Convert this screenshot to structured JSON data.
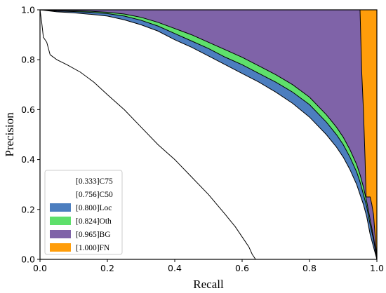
{
  "chart_data": {
    "type": "area",
    "title": "",
    "xlabel": "Recall",
    "ylabel": "Precision",
    "xlim": [
      0.0,
      1.0
    ],
    "ylim": [
      0.0,
      1.0
    ],
    "xticks": [
      "0.0",
      "0.2",
      "0.4",
      "0.6",
      "0.8",
      "1.0"
    ],
    "yticks": [
      "0.0",
      "0.2",
      "0.4",
      "0.6",
      "0.8",
      "1.0"
    ],
    "grid": false,
    "legend_position": "lower-left",
    "legend": [
      {
        "label": "[0.333]C75",
        "color": "#ffffff"
      },
      {
        "label": "[0.756]C50",
        "color": "#ffffff"
      },
      {
        "label": "[0.800]Loc",
        "color": "#4c7ebf"
      },
      {
        "label": "[0.824]Oth",
        "color": "#5ee06b"
      },
      {
        "label": "[0.965]BG",
        "color": "#7f63a8"
      },
      {
        "label": "[1.000]FN",
        "color": "#ff9d0a"
      }
    ],
    "series": [
      {
        "name": "[0.333]C75",
        "color": "#ffffff",
        "x": [
          0.0,
          0.005,
          0.01,
          0.02,
          0.03,
          0.05,
          0.08,
          0.12,
          0.16,
          0.2,
          0.25,
          0.3,
          0.35,
          0.4,
          0.45,
          0.5,
          0.55,
          0.58,
          0.6,
          0.62,
          0.63,
          0.64
        ],
        "y": [
          1.0,
          0.95,
          0.89,
          0.87,
          0.82,
          0.8,
          0.78,
          0.75,
          0.71,
          0.66,
          0.6,
          0.53,
          0.46,
          0.4,
          0.33,
          0.26,
          0.18,
          0.13,
          0.09,
          0.05,
          0.02,
          0.0
        ]
      },
      {
        "name": "[0.756]C50",
        "color": "#ffffff",
        "x": [
          0.0,
          0.05,
          0.1,
          0.15,
          0.2,
          0.25,
          0.3,
          0.35,
          0.4,
          0.45,
          0.5,
          0.55,
          0.6,
          0.65,
          0.7,
          0.75,
          0.8,
          0.85,
          0.88,
          0.9,
          0.92,
          0.94,
          0.95,
          0.96,
          0.97,
          0.98,
          0.99,
          1.0
        ],
        "y": [
          1.0,
          0.992,
          0.988,
          0.982,
          0.975,
          0.96,
          0.94,
          0.915,
          0.88,
          0.85,
          0.815,
          0.78,
          0.745,
          0.71,
          0.67,
          0.625,
          0.57,
          0.5,
          0.45,
          0.41,
          0.36,
          0.3,
          0.26,
          0.22,
          0.17,
          0.1,
          0.05,
          0.0
        ]
      },
      {
        "name": "[0.800]Loc",
        "color": "#4c7ebf",
        "x": [
          0.0,
          0.05,
          0.1,
          0.15,
          0.2,
          0.25,
          0.3,
          0.35,
          0.4,
          0.45,
          0.5,
          0.55,
          0.6,
          0.65,
          0.7,
          0.75,
          0.8,
          0.85,
          0.88,
          0.9,
          0.92,
          0.94,
          0.95,
          0.96,
          0.97,
          0.98,
          0.99,
          1.0
        ],
        "y": [
          1.0,
          0.995,
          0.993,
          0.99,
          0.985,
          0.975,
          0.958,
          0.935,
          0.905,
          0.875,
          0.845,
          0.81,
          0.78,
          0.745,
          0.71,
          0.67,
          0.62,
          0.55,
          0.5,
          0.46,
          0.41,
          0.35,
          0.31,
          0.26,
          0.21,
          0.14,
          0.08,
          0.0
        ]
      },
      {
        "name": "[0.824]Oth",
        "color": "#5ee06b",
        "x": [
          0.0,
          0.05,
          0.1,
          0.15,
          0.2,
          0.25,
          0.3,
          0.35,
          0.4,
          0.45,
          0.5,
          0.55,
          0.6,
          0.65,
          0.7,
          0.75,
          0.8,
          0.85,
          0.88,
          0.9,
          0.92,
          0.94,
          0.95,
          0.96,
          0.97,
          0.98,
          0.99,
          1.0
        ],
        "y": [
          1.0,
          0.997,
          0.996,
          0.994,
          0.99,
          0.983,
          0.97,
          0.95,
          0.925,
          0.9,
          0.87,
          0.84,
          0.81,
          0.775,
          0.74,
          0.7,
          0.65,
          0.58,
          0.53,
          0.49,
          0.44,
          0.38,
          0.34,
          0.29,
          0.23,
          0.16,
          0.09,
          0.0
        ]
      },
      {
        "name": "[0.965]BG",
        "color": "#7f63a8",
        "x": [
          0.0,
          0.95,
          0.955,
          0.96,
          0.965,
          0.968,
          0.975,
          0.98,
          0.985,
          0.99,
          1.0
        ],
        "y": [
          1.0,
          1.0,
          0.75,
          0.6,
          0.4,
          0.25,
          0.25,
          0.25,
          0.22,
          0.18,
          0.0
        ]
      },
      {
        "name": "[1.000]FN",
        "color": "#ff9d0a",
        "x": [
          0.0,
          1.0
        ],
        "y": [
          1.0,
          1.0
        ]
      }
    ]
  }
}
